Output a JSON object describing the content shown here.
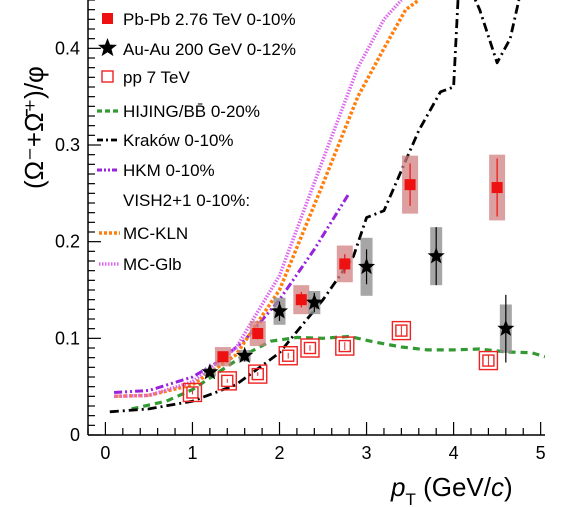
{
  "chart_data": {
    "type": "scatter",
    "xlabel": "p_T (GeV/c)",
    "ylabel": "(Ω⁻+Ω̄⁺)/φ",
    "xlim": [
      -0.2,
      5.05
    ],
    "ylim": [
      0,
      0.45
    ],
    "xticks": [
      "0",
      "1",
      "2",
      "3",
      "4",
      "5"
    ],
    "yticks": [
      "0",
      "0.1",
      "0.2",
      "0.3",
      "0.4"
    ],
    "legend_position": "top-left",
    "legend": [
      "Pb-Pb 2.76 TeV 0-10%",
      "Au-Au 200 GeV 0-12%",
      "pp 7 TeV",
      "HIJING/BB̄ 0-20%",
      "Kraków 0-10%",
      "HKM 0-10%",
      "VISH2+1 0-10%:",
      "MC-KLN",
      "MC-Glb"
    ],
    "colors": {
      "pbpb": "#ee1111",
      "pbpb_sys": "#d08080",
      "auau": "#000000",
      "auau_sys": "#909090",
      "pp": "#ee2222",
      "hijing": "#339933",
      "krakow": "#000000",
      "hkm": "#9922dd",
      "mckln": "#ff7f0e",
      "mcglb": "#dd66ee"
    },
    "series": [
      {
        "name": "Pb-Pb 2.76 TeV 0-10%",
        "marker": "filled-square",
        "x": [
          1.35,
          1.75,
          2.25,
          2.75,
          3.5,
          4.5
        ],
        "y": [
          0.081,
          0.105,
          0.14,
          0.177,
          0.259,
          0.256
        ],
        "err": [
          0.005,
          0.006,
          0.008,
          0.01,
          0.022,
          0.03
        ],
        "sys": [
          0.01,
          0.013,
          0.015,
          0.019,
          0.03,
          0.034
        ]
      },
      {
        "name": "Au-Au 200 GeV 0-12%",
        "marker": "star",
        "x": [
          1.2,
          1.6,
          2.0,
          2.4,
          3.0,
          3.8,
          4.6
        ],
        "y": [
          0.065,
          0.082,
          0.128,
          0.137,
          0.174,
          0.185,
          0.11
        ],
        "err": [
          0.004,
          0.006,
          0.01,
          0.01,
          0.018,
          0.03,
          0.035
        ],
        "sys": [
          0.004,
          0.006,
          0.014,
          0.012,
          0.03,
          0.03,
          0.025
        ]
      },
      {
        "name": "pp 7 TeV",
        "marker": "open-square",
        "x": [
          1.0,
          1.4,
          1.75,
          2.1,
          2.35,
          2.75,
          3.4,
          4.4
        ],
        "y": [
          0.044,
          0.056,
          0.063,
          0.082,
          0.09,
          0.092,
          0.108,
          0.077
        ],
        "err": [
          0.002,
          0.002,
          0.002,
          0.003,
          0.003,
          0.004,
          0.005,
          0.006
        ],
        "sys": [
          0.007,
          0.007,
          0.008,
          0.009,
          0.009,
          0.01,
          0.012,
          0.01
        ]
      },
      {
        "name": "HIJING/BB̄ 0-20%",
        "line": "dashed",
        "x": [
          0.3,
          0.7,
          1.0,
          1.3,
          1.6,
          1.9,
          2.2,
          2.5,
          2.8,
          3.1,
          3.4,
          3.7,
          4.0,
          4.3,
          4.6,
          4.9,
          5.05
        ],
        "y": [
          0.027,
          0.035,
          0.047,
          0.065,
          0.083,
          0.097,
          0.101,
          0.1,
          0.102,
          0.096,
          0.091,
          0.088,
          0.088,
          0.089,
          0.086,
          0.085,
          0.081
        ]
      },
      {
        "name": "Kraków 0-10%",
        "line": "dash-dot",
        "x": [
          0.05,
          0.5,
          1.0,
          1.5,
          2.0,
          2.5,
          2.85,
          3.0,
          3.2,
          3.6,
          3.85,
          4.0,
          4.05,
          4.15,
          4.3,
          4.5,
          4.65,
          4.75
        ],
        "y": [
          0.024,
          0.027,
          0.035,
          0.052,
          0.085,
          0.14,
          0.185,
          0.225,
          0.232,
          0.315,
          0.355,
          0.36,
          0.45,
          0.47,
          0.44,
          0.385,
          0.41,
          0.45
        ]
      },
      {
        "name": "HKM 0-10%",
        "line": "dash-dot-dot",
        "x": [
          0.1,
          0.5,
          1.0,
          1.3,
          1.6,
          2.0,
          2.4,
          2.8
        ],
        "y": [
          0.044,
          0.046,
          0.06,
          0.076,
          0.098,
          0.14,
          0.192,
          0.25
        ]
      },
      {
        "name": "MC-KLN",
        "line": "dotted",
        "x": [
          0.1,
          0.5,
          1.0,
          1.5,
          2.0,
          2.5,
          2.9,
          3.2,
          3.45,
          3.6
        ],
        "y": [
          0.04,
          0.041,
          0.052,
          0.083,
          0.15,
          0.26,
          0.35,
          0.4,
          0.44,
          0.45
        ]
      },
      {
        "name": "MC-Glb",
        "line": "fine-dotted",
        "x": [
          0.1,
          0.5,
          1.0,
          1.5,
          2.0,
          2.5,
          2.9,
          3.2,
          3.4
        ],
        "y": [
          0.04,
          0.041,
          0.055,
          0.09,
          0.165,
          0.285,
          0.38,
          0.43,
          0.45
        ]
      }
    ]
  }
}
